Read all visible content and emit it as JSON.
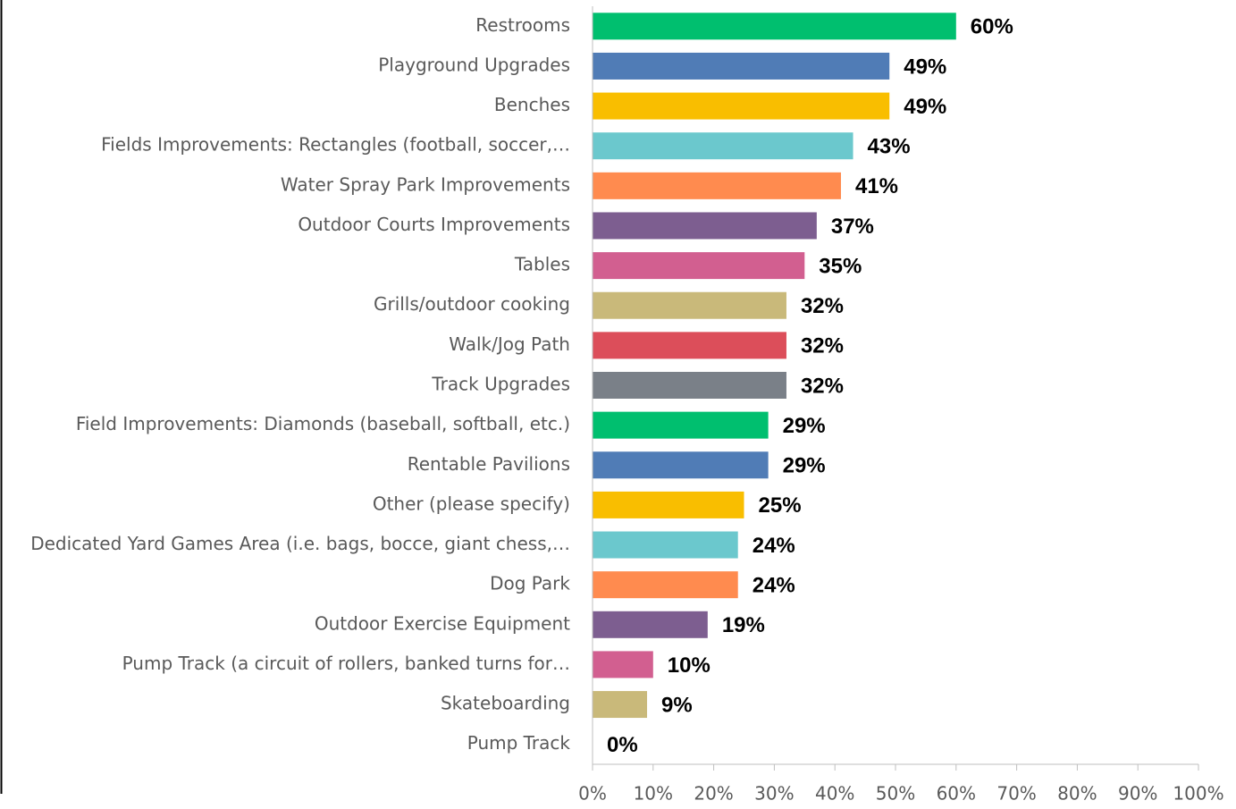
{
  "chart_data": {
    "type": "bar",
    "orientation": "horizontal",
    "categories": [
      "Restrooms",
      "Playground Upgrades",
      "Benches",
      "Fields Improvements: Rectangles (football, soccer,…",
      "Water Spray Park Improvements",
      "Outdoor Courts Improvements",
      "Tables",
      "Grills/outdoor cooking",
      "Walk/Jog Path",
      "Track Upgrades",
      "Field Improvements: Diamonds (baseball, softball, etc.)",
      "Rentable Pavilions",
      "Other (please specify)",
      "Dedicated Yard Games Area (i.e. bags, bocce, giant chess,…",
      "Dog Park",
      "Outdoor Exercise Equipment",
      "Pump Track (a circuit of rollers, banked turns for…",
      "Skateboarding",
      "Pump Track"
    ],
    "values": [
      60,
      49,
      49,
      43,
      41,
      37,
      35,
      32,
      32,
      32,
      29,
      29,
      25,
      24,
      24,
      19,
      10,
      9,
      0
    ],
    "value_labels": [
      "60%",
      "49%",
      "49%",
      "43%",
      "41%",
      "37%",
      "35%",
      "32%",
      "32%",
      "32%",
      "29%",
      "29%",
      "25%",
      "24%",
      "24%",
      "19%",
      "10%",
      "9%",
      "0%"
    ],
    "colors": [
      "#00bf6f",
      "#507cb6",
      "#f9be00",
      "#6bc8cd",
      "#ff8b4f",
      "#7d5e90",
      "#d25f90",
      "#c9b97a",
      "#dc4e5a",
      "#7a8088",
      "#00bf6f",
      "#507cb6",
      "#f9be00",
      "#6bc8cd",
      "#ff8b4f",
      "#7d5e90",
      "#d25f90",
      "#c9b97a",
      "#dc4e5a"
    ],
    "xlim": [
      0,
      100
    ],
    "xticks": [
      {
        "value": 0,
        "label": "0%"
      },
      {
        "value": 10,
        "label": "10%"
      },
      {
        "value": 20,
        "label": "20%"
      },
      {
        "value": 30,
        "label": "30%"
      },
      {
        "value": 40,
        "label": "40%"
      },
      {
        "value": 50,
        "label": "50%"
      },
      {
        "value": 60,
        "label": "60%"
      },
      {
        "value": 70,
        "label": "70%"
      },
      {
        "value": 80,
        "label": "80%"
      },
      {
        "value": 90,
        "label": "90%"
      },
      {
        "value": 100,
        "label": "100%"
      }
    ],
    "grid": false
  }
}
